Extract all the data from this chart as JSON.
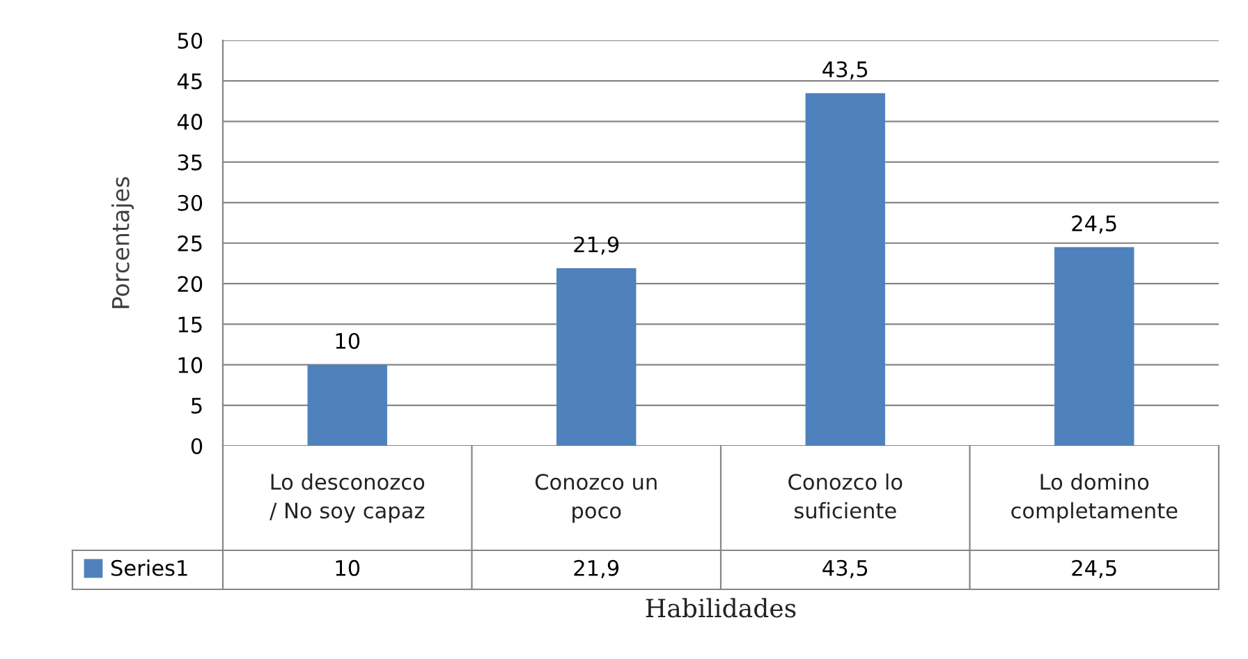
{
  "chart_data": {
    "type": "bar",
    "xlabel": "Habilidades",
    "ylabel": "Porcentajes",
    "categories": [
      "Lo desconozco / No soy capaz",
      "Conozco un poco",
      "Conozco lo suficiente",
      "Lo domino completamente"
    ],
    "series": [
      {
        "name": "Series1",
        "color": "#4f81bd",
        "values": [
          10,
          21.9,
          43.5,
          24.5
        ],
        "value_labels": [
          "10",
          "21,9",
          "43,5",
          "24,5"
        ]
      }
    ],
    "ylim": [
      0,
      50
    ],
    "yticks": [
      0,
      5,
      10,
      15,
      20,
      25,
      30,
      35,
      40,
      45,
      50
    ],
    "grid": "y",
    "legend": "bottom"
  }
}
